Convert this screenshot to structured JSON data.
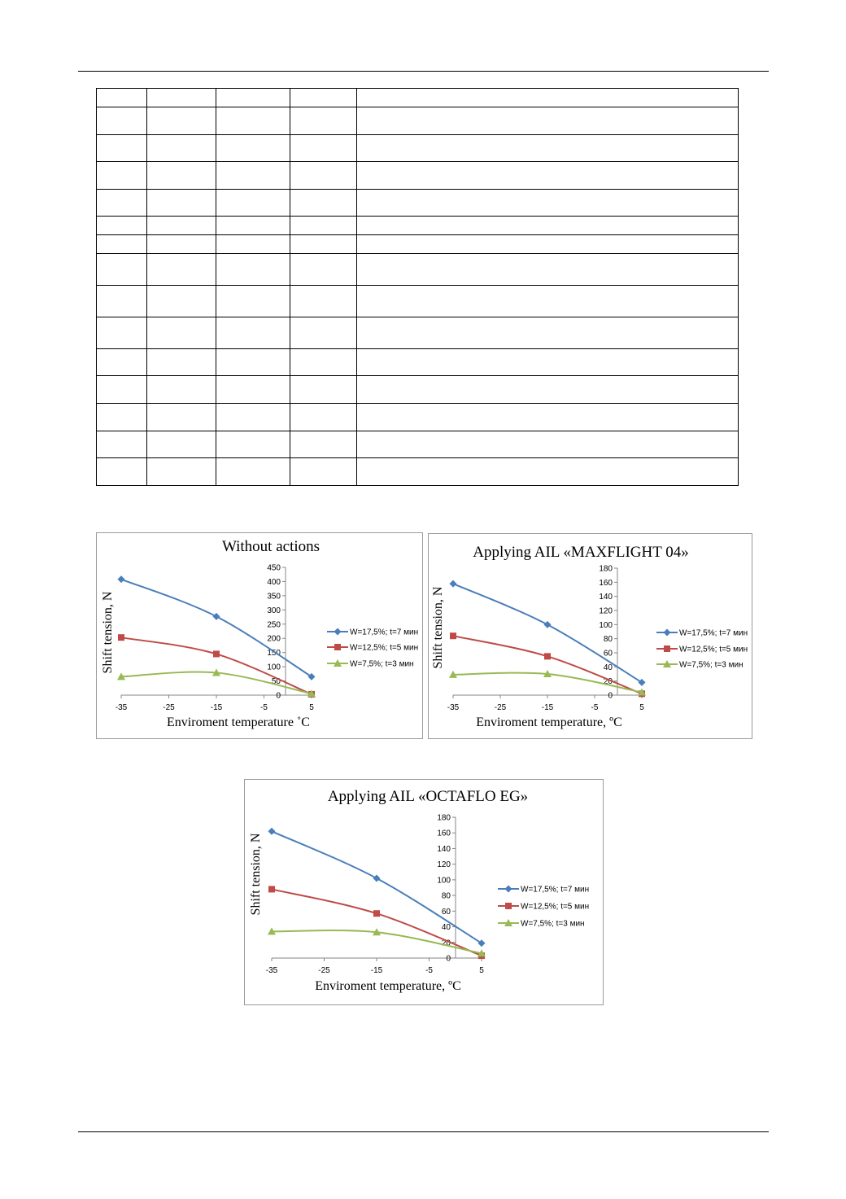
{
  "colors": {
    "series1": "#4a7ebb",
    "series2": "#be4b48",
    "series3": "#98b954",
    "axis": "#868686",
    "border": "#9a9a9a"
  },
  "table": {
    "row_count": 15,
    "column_count": 5
  },
  "chart_data": [
    {
      "type": "line",
      "title": "Without actions",
      "xlabel": "Enviroment temperature ˚C",
      "ylabel": "Shift tension, N",
      "xlim": [
        -35,
        5
      ],
      "ylim": [
        0,
        450
      ],
      "x_ticks": [
        "-35",
        "-25",
        "-15",
        "-5",
        "5"
      ],
      "y_ticks": [
        "0",
        "50",
        "100",
        "150",
        "200",
        "250",
        "300",
        "350",
        "400",
        "450"
      ],
      "legend_position": "right",
      "x": [
        -35,
        -15,
        5
      ],
      "series": [
        {
          "name": "W=17,5%; t=7 мин",
          "marker": "diamond",
          "values": [
            408,
            277,
            65
          ]
        },
        {
          "name": "W=12,5%; t=5 мин",
          "marker": "square",
          "values": [
            203,
            145,
            3
          ]
        },
        {
          "name": "W=7,5%; t=3 мин",
          "marker": "triangle",
          "values": [
            65,
            79,
            5
          ]
        }
      ]
    },
    {
      "type": "line",
      "title": "Applying AIL «MAXFLIGHT 04»",
      "xlabel": "Enviroment temperature, ºC",
      "ylabel": "Shift tension, N",
      "xlim": [
        -35,
        5
      ],
      "ylim": [
        0,
        180
      ],
      "x_ticks": [
        "-35",
        "-25",
        "-15",
        "-5",
        "5"
      ],
      "y_ticks": [
        "0",
        "20",
        "40",
        "60",
        "80",
        "100",
        "120",
        "140",
        "160",
        "180"
      ],
      "legend_position": "right",
      "x": [
        -35,
        -15,
        5
      ],
      "series": [
        {
          "name": "W=17,5%; t=7 мин",
          "marker": "diamond",
          "values": [
            158,
            100,
            18
          ]
        },
        {
          "name": "W=12,5%; t=5 мин",
          "marker": "square",
          "values": [
            84,
            55,
            2
          ]
        },
        {
          "name": "W=7,5%; t=3 мин",
          "marker": "triangle",
          "values": [
            29,
            30,
            4
          ]
        }
      ]
    },
    {
      "type": "line",
      "title": "Applying AIL «OCTAFLO EG»",
      "xlabel": "Enviroment temperature, ºC",
      "ylabel": "Shift tension, N",
      "xlim": [
        -35,
        5
      ],
      "ylim": [
        0,
        180
      ],
      "x_ticks": [
        "-35",
        "-25",
        "-15",
        "-5",
        "5"
      ],
      "y_ticks": [
        "0",
        "20",
        "40",
        "60",
        "80",
        "100",
        "120",
        "140",
        "160",
        "180"
      ],
      "legend_position": "right",
      "x": [
        -35,
        -15,
        5
      ],
      "series": [
        {
          "name": "W=17,5%; t=7 мин",
          "marker": "diamond",
          "values": [
            162,
            102,
            19
          ]
        },
        {
          "name": "W=12,5%; t=5 мин",
          "marker": "square",
          "values": [
            88,
            57,
            3
          ]
        },
        {
          "name": "W=7,5%; t=3 мин",
          "marker": "triangle",
          "values": [
            34,
            33,
            6
          ]
        }
      ]
    }
  ]
}
